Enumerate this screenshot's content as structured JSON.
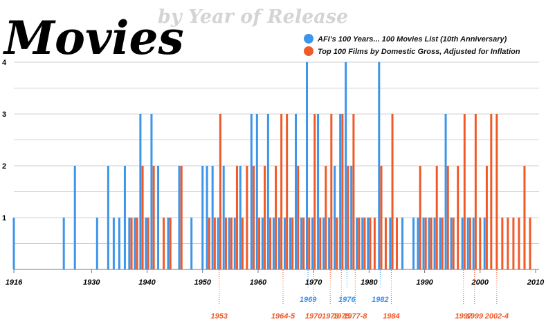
{
  "header": {
    "title": "Movies",
    "subtitle": "by Year of Release"
  },
  "legend": {
    "position": "top-right",
    "items": [
      {
        "label": "AFI’s 100 Years... 100 Movies List (10th Anniversary)",
        "color": "#3d95ea"
      },
      {
        "label": "Top 100 Films by Domestic Gross, Adjusted for Inflation",
        "color": "#ef5a28"
      }
    ]
  },
  "colors": {
    "afi": "#3d95ea",
    "gross": "#ef5a28",
    "grid": "#cfcfcf",
    "axis": "#777777"
  },
  "chart_data": {
    "type": "bar",
    "xlim": [
      1916,
      2010
    ],
    "ylim": [
      0,
      4
    ],
    "grid": true,
    "xticks": [
      "1916",
      "1930",
      "1940",
      "1950",
      "1960",
      "1970",
      "1980",
      "1990",
      "2000",
      "2010"
    ],
    "yticks": [
      "1",
      "2",
      "3",
      "4"
    ],
    "series": [
      {
        "name": "AFI’s 100 Years... 100 Movies List (10th Anniversary)",
        "points": [
          [
            1916,
            1
          ],
          [
            1925,
            1
          ],
          [
            1927,
            2
          ],
          [
            1931,
            1
          ],
          [
            1933,
            2
          ],
          [
            1934,
            1
          ],
          [
            1935,
            1
          ],
          [
            1936,
            2
          ],
          [
            1937,
            1
          ],
          [
            1938,
            1
          ],
          [
            1939,
            3
          ],
          [
            1940,
            1
          ],
          [
            1941,
            3
          ],
          [
            1942,
            2
          ],
          [
            1944,
            1
          ],
          [
            1946,
            2
          ],
          [
            1948,
            1
          ],
          [
            1950,
            2
          ],
          [
            1951,
            2
          ],
          [
            1952,
            2
          ],
          [
            1953,
            1
          ],
          [
            1954,
            2
          ],
          [
            1955,
            1
          ],
          [
            1956,
            1
          ],
          [
            1957,
            2
          ],
          [
            1959,
            3
          ],
          [
            1960,
            3
          ],
          [
            1961,
            1
          ],
          [
            1962,
            3
          ],
          [
            1963,
            1
          ],
          [
            1964,
            1
          ],
          [
            1965,
            1
          ],
          [
            1966,
            1
          ],
          [
            1967,
            3
          ],
          [
            1968,
            1
          ],
          [
            1969,
            4
          ],
          [
            1970,
            1
          ],
          [
            1971,
            3
          ],
          [
            1972,
            1
          ],
          [
            1973,
            1
          ],
          [
            1974,
            2
          ],
          [
            1975,
            3
          ],
          [
            1976,
            4
          ],
          [
            1977,
            2
          ],
          [
            1978,
            1
          ],
          [
            1979,
            1
          ],
          [
            1980,
            1
          ],
          [
            1982,
            4
          ],
          [
            1984,
            1
          ],
          [
            1986,
            1
          ],
          [
            1988,
            1
          ],
          [
            1989,
            1
          ],
          [
            1990,
            1
          ],
          [
            1991,
            1
          ],
          [
            1992,
            1
          ],
          [
            1993,
            1
          ],
          [
            1994,
            3
          ],
          [
            1995,
            1
          ],
          [
            1997,
            1
          ],
          [
            1998,
            1
          ],
          [
            1999,
            1
          ],
          [
            2001,
            1
          ]
        ]
      },
      {
        "name": "Top 100 Films by Domestic Gross, Adjusted for Inflation",
        "points": [
          [
            1937,
            1
          ],
          [
            1938,
            1
          ],
          [
            1939,
            2
          ],
          [
            1940,
            1
          ],
          [
            1941,
            2
          ],
          [
            1943,
            1
          ],
          [
            1944,
            1
          ],
          [
            1946,
            2
          ],
          [
            1951,
            1
          ],
          [
            1952,
            1
          ],
          [
            1953,
            3
          ],
          [
            1954,
            1
          ],
          [
            1955,
            1
          ],
          [
            1956,
            2
          ],
          [
            1957,
            1
          ],
          [
            1958,
            2
          ],
          [
            1959,
            2
          ],
          [
            1960,
            1
          ],
          [
            1961,
            2
          ],
          [
            1962,
            1
          ],
          [
            1963,
            2
          ],
          [
            1964,
            3
          ],
          [
            1965,
            3
          ],
          [
            1966,
            1
          ],
          [
            1967,
            2
          ],
          [
            1968,
            1
          ],
          [
            1969,
            1
          ],
          [
            1970,
            3
          ],
          [
            1971,
            1
          ],
          [
            1972,
            2
          ],
          [
            1973,
            3
          ],
          [
            1974,
            1
          ],
          [
            1975,
            3
          ],
          [
            1976,
            2
          ],
          [
            1977,
            3
          ],
          [
            1978,
            1
          ],
          [
            1979,
            1
          ],
          [
            1980,
            1
          ],
          [
            1981,
            1
          ],
          [
            1982,
            2
          ],
          [
            1983,
            1
          ],
          [
            1984,
            3
          ],
          [
            1985,
            1
          ],
          [
            1989,
            2
          ],
          [
            1990,
            1
          ],
          [
            1991,
            1
          ],
          [
            1992,
            2
          ],
          [
            1993,
            1
          ],
          [
            1994,
            2
          ],
          [
            1995,
            1
          ],
          [
            1996,
            2
          ],
          [
            1997,
            3
          ],
          [
            1998,
            1
          ],
          [
            1999,
            3
          ],
          [
            2000,
            1
          ],
          [
            2001,
            2
          ],
          [
            2002,
            3
          ],
          [
            2003,
            3
          ],
          [
            2004,
            1
          ],
          [
            2005,
            1
          ],
          [
            2006,
            1
          ],
          [
            2007,
            1
          ],
          [
            2008,
            2
          ],
          [
            2009,
            1
          ]
        ]
      }
    ],
    "annotations": [
      {
        "label": "1969",
        "year": 1969,
        "series": "afi",
        "row": 1
      },
      {
        "label": "1976",
        "year": 1976,
        "series": "afi",
        "row": 1
      },
      {
        "label": "1982",
        "year": 1982,
        "series": "afi",
        "row": 1
      },
      {
        "label": "1953",
        "year": 1953,
        "series": "gross",
        "row": 2
      },
      {
        "label": "1964-5",
        "year": 1964.5,
        "series": "gross",
        "row": 2
      },
      {
        "label": "1970",
        "year": 1970,
        "series": "gross",
        "row": 2
      },
      {
        "label": "1973",
        "year": 1973,
        "series": "gross",
        "row": 2
      },
      {
        "label": "1975",
        "year": 1975,
        "series": "gross",
        "row": 2
      },
      {
        "label": "1977-8",
        "year": 1977.5,
        "series": "gross",
        "row": 2
      },
      {
        "label": "1984",
        "year": 1984,
        "series": "gross",
        "row": 2
      },
      {
        "label": "1997",
        "year": 1997,
        "series": "gross",
        "row": 2
      },
      {
        "label": "1999",
        "year": 1999,
        "series": "gross",
        "row": 2
      },
      {
        "label": "2002-4",
        "year": 2003,
        "series": "gross",
        "row": 2
      }
    ]
  }
}
